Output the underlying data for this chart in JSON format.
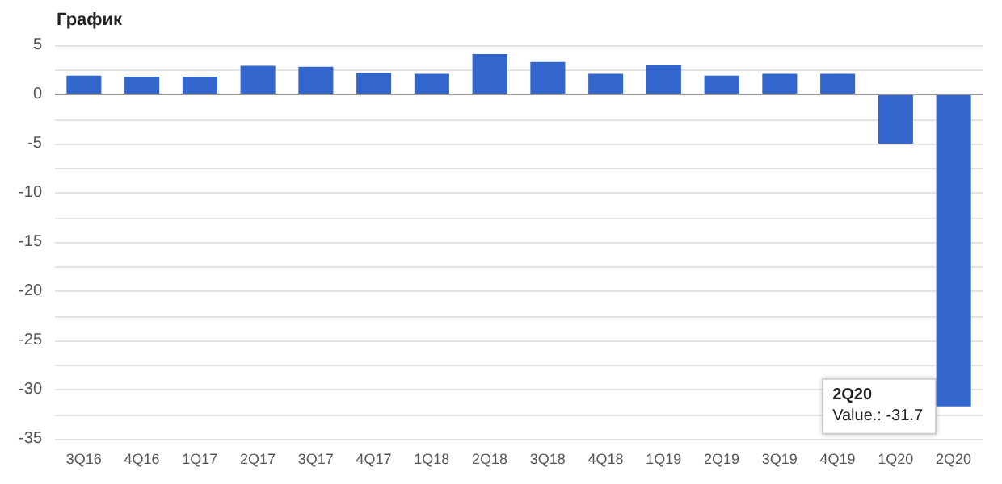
{
  "chart_data": {
    "type": "bar",
    "title": "График",
    "categories": [
      "3Q16",
      "4Q16",
      "1Q17",
      "2Q17",
      "3Q17",
      "4Q17",
      "1Q18",
      "2Q18",
      "3Q18",
      "4Q18",
      "1Q19",
      "2Q19",
      "3Q19",
      "4Q19",
      "1Q20",
      "2Q20"
    ],
    "values": [
      1.9,
      1.8,
      1.8,
      2.9,
      2.8,
      2.2,
      2.1,
      4.1,
      3.3,
      2.1,
      3.0,
      1.9,
      2.1,
      2.1,
      -5.0,
      -31.7
    ],
    "color": "#3366cc",
    "ylim": [
      -35,
      5
    ],
    "yticks": [
      -35,
      {
        "value": -32.5,
        "label": null
      },
      -30,
      {
        "value": -27.5,
        "label": null
      },
      -25,
      {
        "value": -22.5,
        "label": null
      },
      -20,
      {
        "value": -17.5,
        "label": null
      },
      -15,
      {
        "value": -12.5,
        "label": null
      },
      -10,
      {
        "value": -7.5,
        "label": null
      },
      -5,
      {
        "value": -2.5,
        "label": null
      },
      0,
      {
        "value": 2.5,
        "label": null
      },
      5
    ],
    "grid": "y",
    "annotations": [
      {
        "text": "2Q20\nValue.: -31.7",
        "x": "2Q20",
        "y": -31.7
      }
    ]
  }
}
